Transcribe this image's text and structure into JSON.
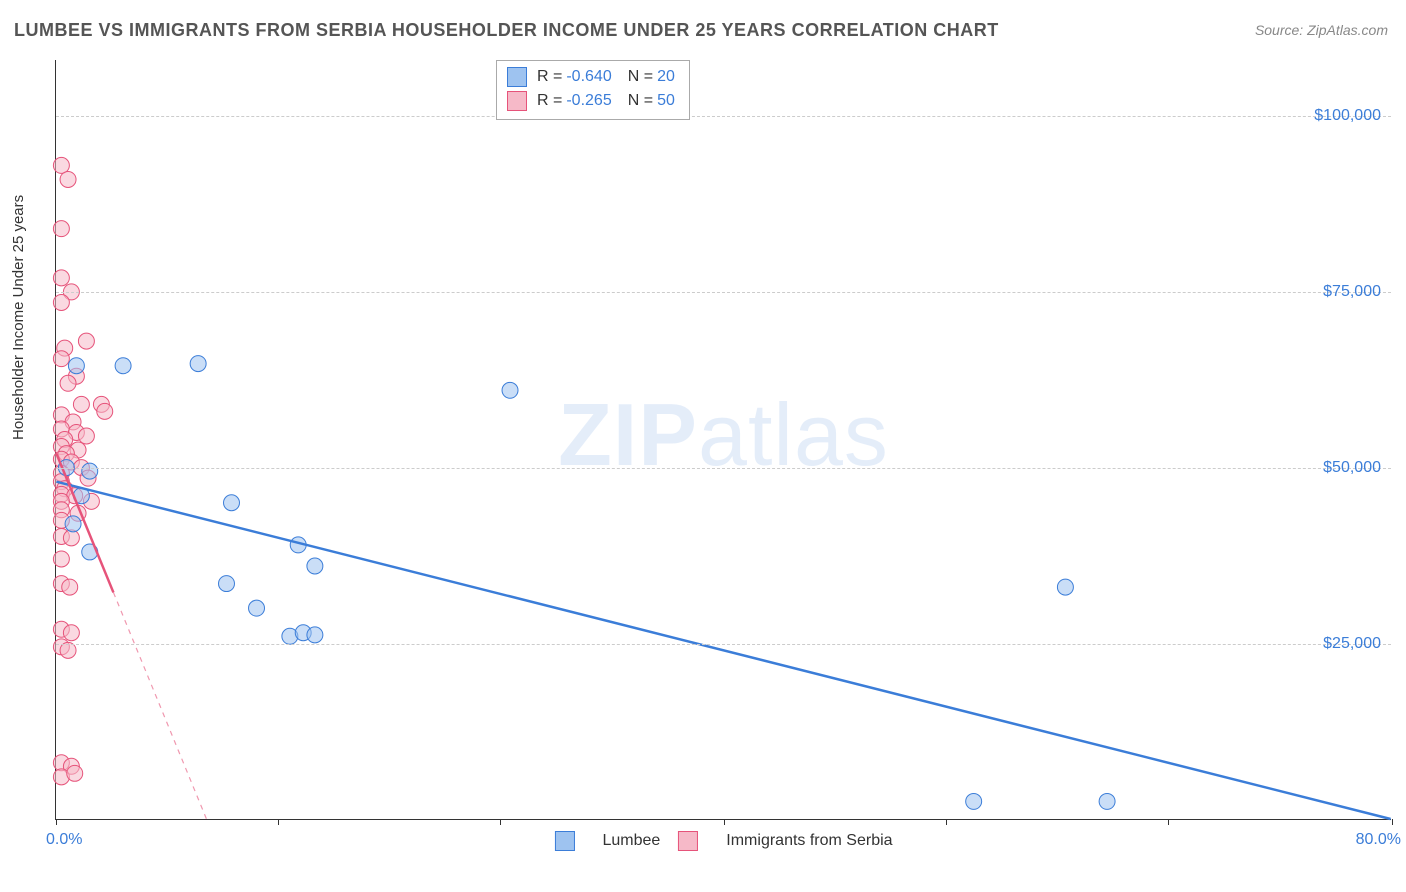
{
  "title": "LUMBEE VS IMMIGRANTS FROM SERBIA HOUSEHOLDER INCOME UNDER 25 YEARS CORRELATION CHART",
  "source": "Source: ZipAtlas.com",
  "watermark_zip": "ZIP",
  "watermark_atlas": "atlas",
  "ylabel": "Householder Income Under 25 years",
  "chart": {
    "type": "scatter",
    "background_color": "#ffffff",
    "grid_color": "#cccccc",
    "axis_color": "#333333",
    "label_color": "#333333",
    "value_color": "#3b7dd8",
    "xlim": [
      0,
      80
    ],
    "ylim": [
      0,
      108000
    ],
    "xtick_positions": [
      0,
      13.3,
      26.6,
      40,
      53.3,
      66.6,
      80
    ],
    "xtick_labels_shown": {
      "0": "0.0%",
      "80": "80.0%"
    },
    "ytick_values": [
      25000,
      50000,
      75000,
      100000
    ],
    "ytick_labels": [
      "$25,000",
      "$50,000",
      "$75,000",
      "$100,000"
    ],
    "marker_radius": 8,
    "marker_opacity": 0.55,
    "line_width": 2.5
  },
  "series": [
    {
      "name": "Lumbee",
      "color": "#9ec3f0",
      "stroke": "#3b7dd8",
      "fill": "#9ec3f0",
      "R": "-0.640",
      "N": "20",
      "regression": {
        "x1": 0,
        "y1": 48000,
        "x2": 80,
        "y2": 0,
        "solid_fraction": 1.0
      },
      "points": [
        [
          1.2,
          64500
        ],
        [
          4.0,
          64500
        ],
        [
          8.5,
          64800
        ],
        [
          27.2,
          61000
        ],
        [
          0.6,
          50000
        ],
        [
          10.5,
          45000
        ],
        [
          2.0,
          49500
        ],
        [
          2.0,
          38000
        ],
        [
          14.5,
          39000
        ],
        [
          10.2,
          33500
        ],
        [
          15.5,
          36000
        ],
        [
          12.0,
          30000
        ],
        [
          14.0,
          26000
        ],
        [
          14.8,
          26500
        ],
        [
          15.5,
          26200
        ],
        [
          55.0,
          2500
        ],
        [
          63.0,
          2500
        ],
        [
          60.5,
          33000
        ],
        [
          1.5,
          46000
        ],
        [
          1.0,
          42000
        ]
      ]
    },
    {
      "name": "Immigrants from Serbia",
      "color": "#f6b9c8",
      "stroke": "#e6537a",
      "fill": "#f6b9c8",
      "R": "-0.265",
      "N": "50",
      "regression": {
        "x1": 0,
        "y1": 52000,
        "x2": 9.0,
        "y2": 0,
        "solid_fraction": 0.38
      },
      "points": [
        [
          0.3,
          93000
        ],
        [
          0.7,
          91000
        ],
        [
          0.3,
          84000
        ],
        [
          0.3,
          77000
        ],
        [
          0.9,
          75000
        ],
        [
          0.3,
          73500
        ],
        [
          1.8,
          68000
        ],
        [
          0.5,
          67000
        ],
        [
          0.3,
          65500
        ],
        [
          1.2,
          63000
        ],
        [
          0.7,
          62000
        ],
        [
          1.5,
          59000
        ],
        [
          2.7,
          59000
        ],
        [
          2.9,
          58000
        ],
        [
          0.3,
          57500
        ],
        [
          1.0,
          56500
        ],
        [
          0.3,
          55500
        ],
        [
          1.2,
          55000
        ],
        [
          1.8,
          54500
        ],
        [
          0.5,
          54000
        ],
        [
          0.3,
          53000
        ],
        [
          1.3,
          52500
        ],
        [
          0.6,
          52000
        ],
        [
          0.3,
          51200
        ],
        [
          0.9,
          50800
        ],
        [
          1.5,
          50000
        ],
        [
          0.3,
          49200
        ],
        [
          0.3,
          48000
        ],
        [
          1.9,
          48500
        ],
        [
          0.5,
          47000
        ],
        [
          0.3,
          46200
        ],
        [
          1.1,
          46000
        ],
        [
          0.3,
          45200
        ],
        [
          2.1,
          45200
        ],
        [
          0.3,
          44000
        ],
        [
          1.3,
          43500
        ],
        [
          0.3,
          42500
        ],
        [
          0.3,
          40200
        ],
        [
          0.9,
          40000
        ],
        [
          0.3,
          37000
        ],
        [
          0.3,
          33500
        ],
        [
          0.8,
          33000
        ],
        [
          0.3,
          27000
        ],
        [
          0.9,
          26500
        ],
        [
          0.3,
          24500
        ],
        [
          0.7,
          24000
        ],
        [
          0.3,
          8000
        ],
        [
          0.9,
          7500
        ],
        [
          0.3,
          6000
        ],
        [
          1.1,
          6500
        ]
      ]
    }
  ],
  "legend_top": {
    "R_label": "R = ",
    "N_label": "N = "
  },
  "legend_bottom": {
    "items": [
      "Lumbee",
      "Immigrants from Serbia"
    ]
  }
}
